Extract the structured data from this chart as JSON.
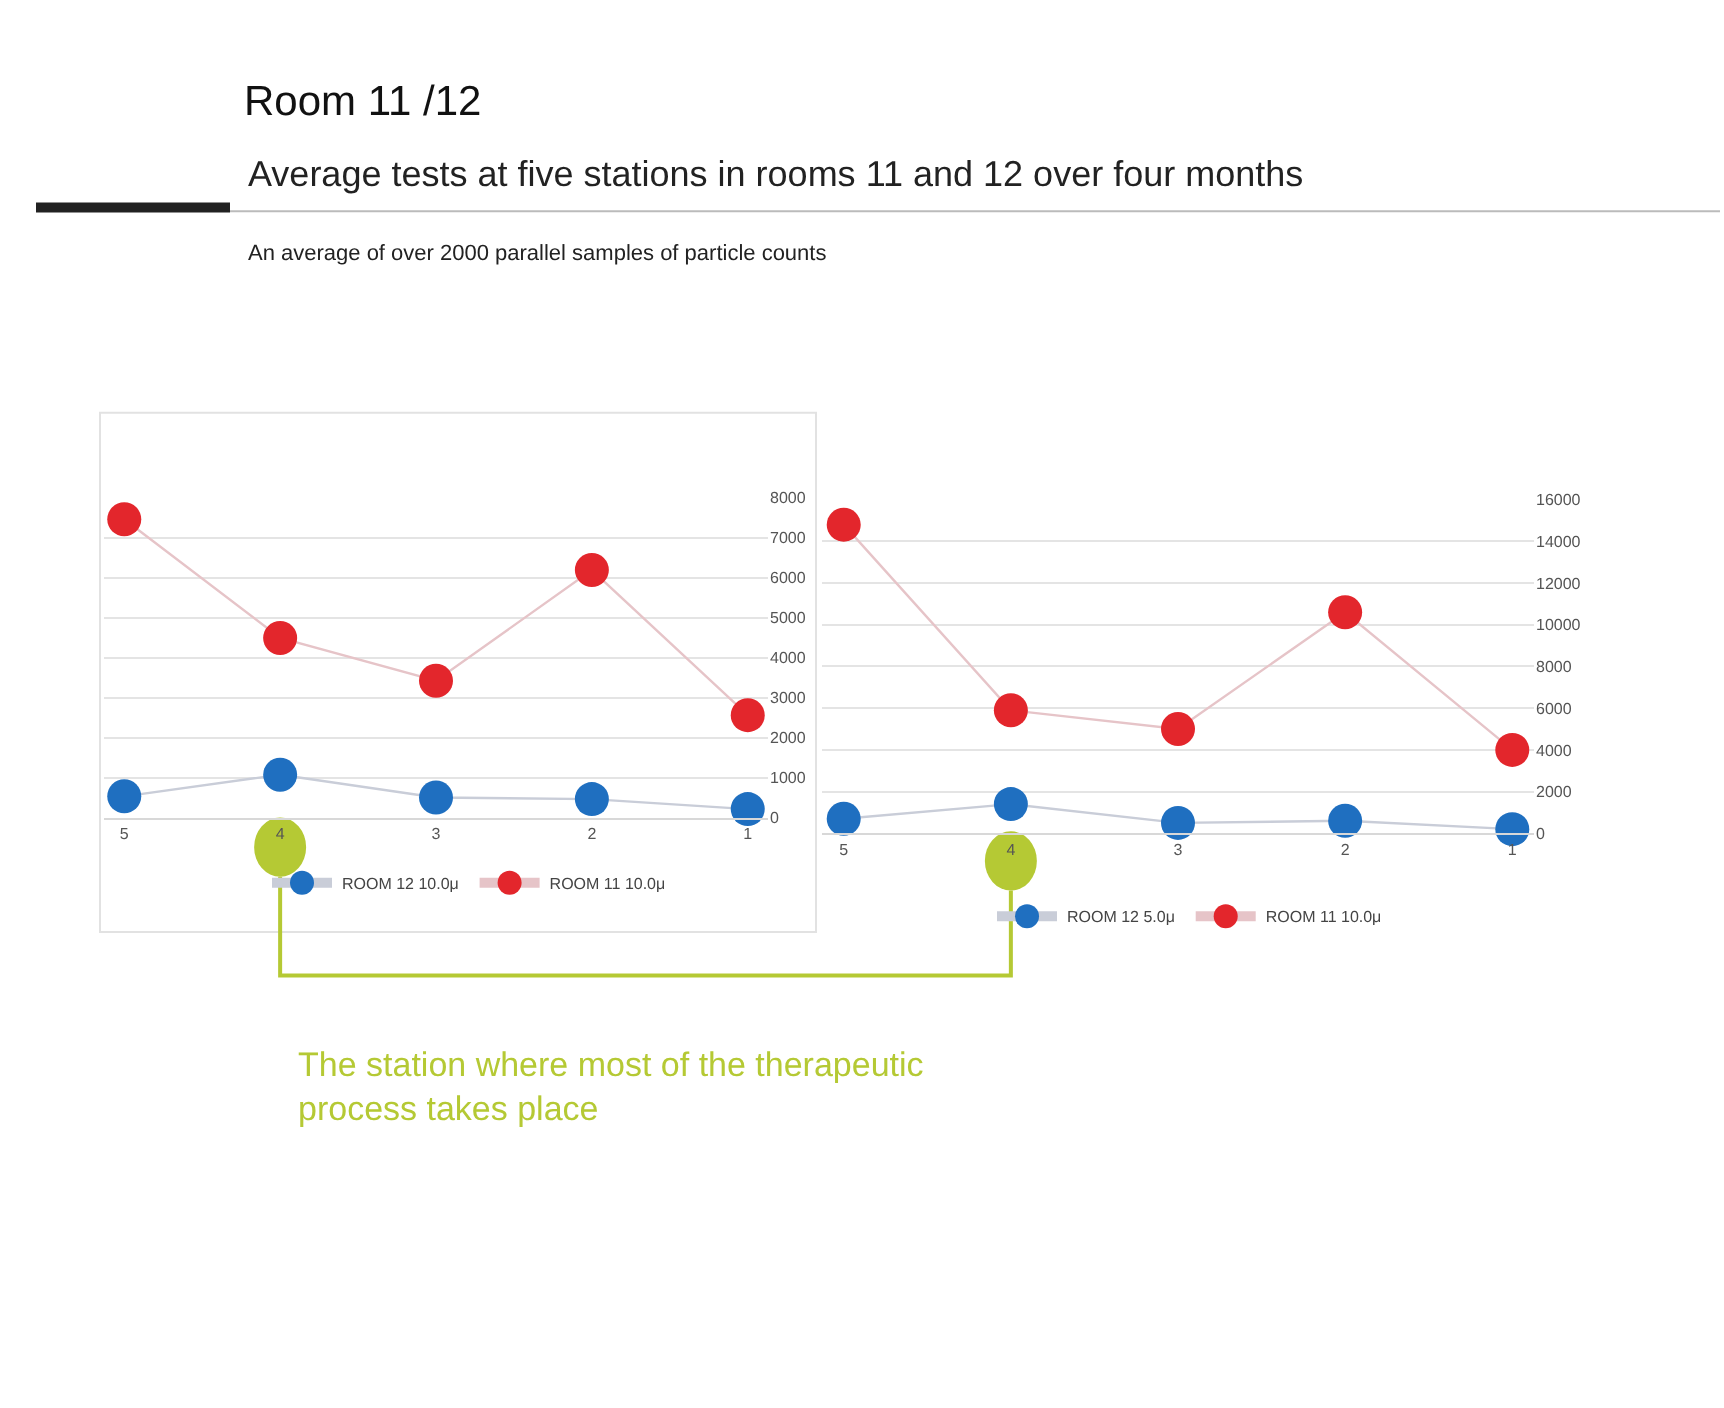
{
  "chart_data": [
    {
      "type": "line",
      "title": "Room 11 /12",
      "subtitle": "Average tests at five stations in rooms 11 and 12 over four months",
      "annotations": [
        "An average of over 2000 parallel samples of particle counts",
        "The station where most of the therapeutic process takes place"
      ],
      "categories": [
        "5",
        "4",
        "3",
        "2",
        "1"
      ],
      "series": [
        {
          "name": "ROOM 12 10.0μ",
          "color": "#1f6fc0",
          "values": [
            530,
            1070,
            500,
            460,
            210
          ]
        },
        {
          "name": "ROOM 11 10.0μ",
          "color": "#e3262c",
          "values": [
            7460,
            4490,
            3420,
            6190,
            2560
          ]
        }
      ],
      "ylim": [
        0,
        8000
      ],
      "yticks": [
        0,
        1000,
        2000,
        3000,
        4000,
        5000,
        6000,
        7000,
        8000
      ],
      "grid": "y",
      "legend": "bottom",
      "marker": "circle"
    },
    {
      "type": "line",
      "categories": [
        "5",
        "4",
        "3",
        "2",
        "1"
      ],
      "series": [
        {
          "name": "ROOM 12 5.0μ",
          "color": "#1f6fc0",
          "values": [
            700,
            1400,
            500,
            600,
            200
          ]
        },
        {
          "name": "ROOM 11 10.0μ",
          "color": "#e3262c",
          "values": [
            14800,
            5900,
            5000,
            10600,
            4000
          ]
        }
      ],
      "ylim": [
        0,
        16000
      ],
      "yticks": [
        0,
        2000,
        4000,
        6000,
        8000,
        10000,
        12000,
        14000,
        16000
      ],
      "grid": "y",
      "legend": "bottom",
      "marker": "circle"
    }
  ]
}
